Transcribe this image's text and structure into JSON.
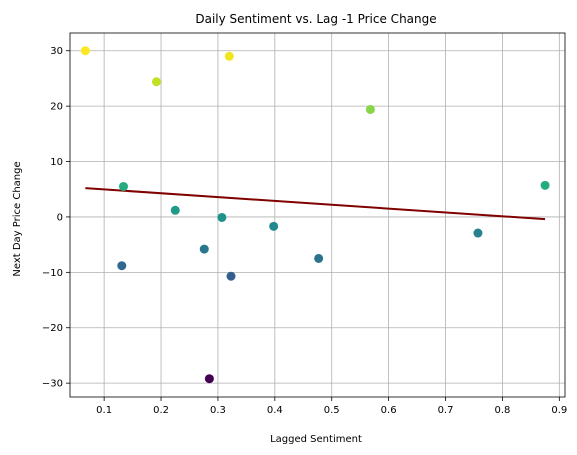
{
  "chart_data": {
    "type": "scatter",
    "title": "Daily Sentiment vs. Lag -1 Price Change",
    "xlabel": "Lagged Sentiment",
    "ylabel": "Next Day Price Change",
    "xlim": [
      0.04,
      0.91
    ],
    "ylim": [
      -32.5,
      33.2
    ],
    "xticks": [
      0.1,
      0.2,
      0.3,
      0.4,
      0.5,
      0.6,
      0.7,
      0.8,
      0.9
    ],
    "xtick_labels": [
      "0.1",
      "0.2",
      "0.3",
      "0.4",
      "0.5",
      "0.6",
      "0.7",
      "0.8",
      "0.9"
    ],
    "yticks": [
      -30,
      -20,
      -10,
      0,
      10,
      20,
      30
    ],
    "ytick_labels": [
      "−30",
      "−20",
      "−10",
      "0",
      "10",
      "20",
      "30"
    ],
    "grid": true,
    "points": [
      {
        "x": 0.067,
        "y": 30.0,
        "color": "#fde725"
      },
      {
        "x": 0.192,
        "y": 24.4,
        "color": "#c2df23"
      },
      {
        "x": 0.32,
        "y": 29.0,
        "color": "#f1e51d"
      },
      {
        "x": 0.568,
        "y": 19.4,
        "color": "#86d549"
      },
      {
        "x": 0.134,
        "y": 5.5,
        "color": "#25ab82"
      },
      {
        "x": 0.875,
        "y": 5.7,
        "color": "#25ab82"
      },
      {
        "x": 0.225,
        "y": 1.2,
        "color": "#1f9a8a"
      },
      {
        "x": 0.307,
        "y": -0.1,
        "color": "#21918c"
      },
      {
        "x": 0.398,
        "y": -1.7,
        "color": "#23898e"
      },
      {
        "x": 0.757,
        "y": -2.9,
        "color": "#26828e"
      },
      {
        "x": 0.276,
        "y": -5.8,
        "color": "#2a768e"
      },
      {
        "x": 0.477,
        "y": -7.5,
        "color": "#2c728e"
      },
      {
        "x": 0.131,
        "y": -8.8,
        "color": "#31688e"
      },
      {
        "x": 0.323,
        "y": -10.7,
        "color": "#355f8d"
      },
      {
        "x": 0.285,
        "y": -29.2,
        "color": "#440154"
      }
    ],
    "trendline": {
      "x": [
        0.067,
        0.875
      ],
      "y": [
        5.2,
        -0.4
      ],
      "color": "#800000"
    }
  }
}
